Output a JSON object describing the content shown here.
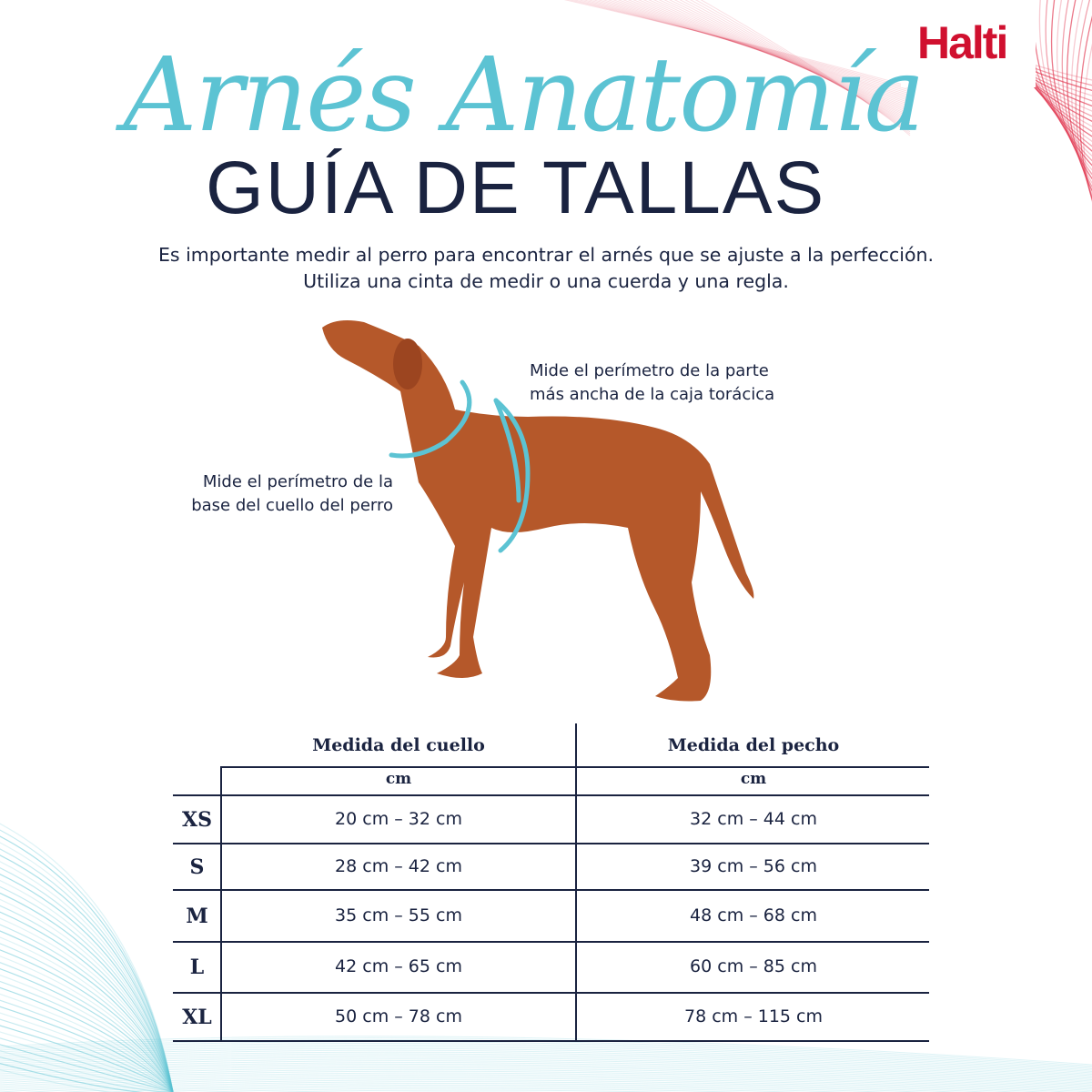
{
  "brand": {
    "logo": "Halti",
    "color": "#d0102f"
  },
  "header": {
    "script_title": "Arnés Anatomía",
    "title": "GUÍA DE TALLAS"
  },
  "intro": [
    "Es importante medir al perro para encontrar el arnés que se ajuste a la perfección.",
    "Utiliza una cinta de medir o una cuerda y una regla."
  ],
  "notes": {
    "chest": [
      "Mide el perímetro de la parte",
      "más ancha de la caja torácica"
    ],
    "neck": [
      "Mide el perímetro de la",
      "base del cuello del perro"
    ]
  },
  "colors": {
    "navy": "#1a2340",
    "teal": "#5cc3d3",
    "dog": "#b5582a"
  },
  "table": {
    "columns": [
      "Medida del cuello",
      "Medida del pecho"
    ],
    "units": [
      "cm",
      "cm"
    ],
    "rows": [
      {
        "size": "XS",
        "neck": "20 cm – 32 cm",
        "chest": "32 cm – 44 cm"
      },
      {
        "size": "S",
        "neck": "28 cm – 42 cm",
        "chest": "39 cm – 56 cm"
      },
      {
        "size": "M",
        "neck": "35 cm – 55 cm",
        "chest": "48 cm – 68 cm"
      },
      {
        "size": "L",
        "neck": "42 cm – 65 cm",
        "chest": "60 cm – 85 cm"
      },
      {
        "size": "XL",
        "neck": "50 cm – 78 cm",
        "chest": "78 cm – 115 cm"
      }
    ]
  }
}
